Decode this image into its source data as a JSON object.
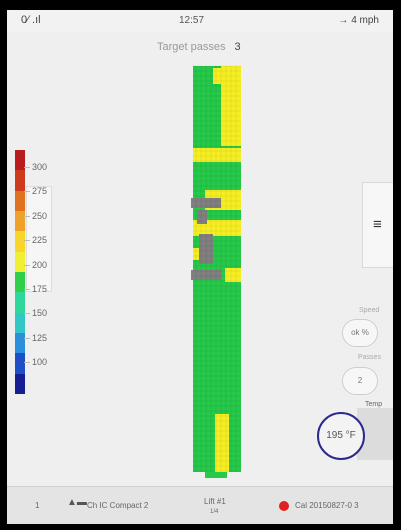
{
  "status": {
    "signal": "0∕ .ıl",
    "time": "12:57",
    "speed": "→  4  mph"
  },
  "target": {
    "label": "Target passes",
    "value": "3"
  },
  "legend": {
    "colors": [
      "#b81c1c",
      "#cc3b1c",
      "#e0721f",
      "#f0a12a",
      "#f7d52a",
      "#f1ee33",
      "#2fcf4a",
      "#2fd79a",
      "#31c7c4",
      "#2a8fdc",
      "#1f4fc6",
      "#151f92"
    ],
    "ticks": [
      "300",
      "275",
      "250",
      "225",
      "200",
      "175",
      "150",
      "125",
      "100"
    ]
  },
  "sidebar": {
    "menu_icon": "≡",
    "speed_label": "Speed",
    "speed_value": "ok %",
    "pass_label": "Passes",
    "pass_value": "2",
    "temp_label": "Temp",
    "temp_value": "195 °F"
  },
  "bottom": {
    "index": "1",
    "machine": "Ch IC Compact  2",
    "lane": "Lift #1",
    "lane_sub": "1/4",
    "file": "Cal 20150827-0  3"
  },
  "map": {
    "palette": {
      "green": "#26c94a",
      "yellow": "#f5ee22",
      "gray": "#808080",
      "background": "#ffffff"
    }
  }
}
